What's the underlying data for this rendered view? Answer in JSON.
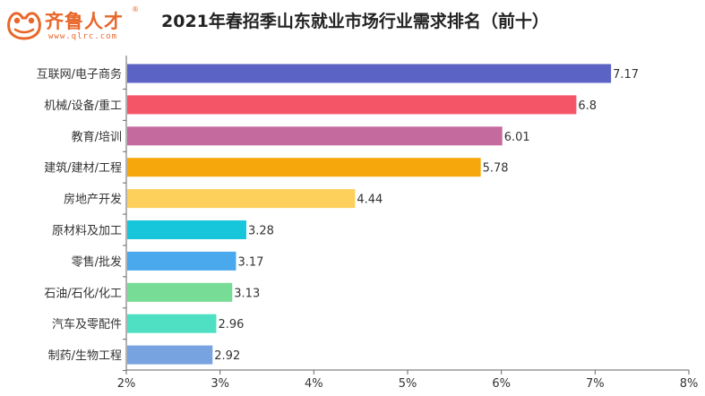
{
  "logo": {
    "text": "齐鲁人才",
    "reg": "®",
    "url": "www.qlrc.com",
    "colors": {
      "brand": "#e8672a"
    }
  },
  "chart_data": {
    "type": "bar",
    "orientation": "horizontal",
    "title": "2021年春招季山东就业市场行业需求排名（前十）",
    "categories": [
      "互联网/电子商务",
      "机械/设备/重工",
      "教育/培训",
      "建筑/建材/工程",
      "房地产开发",
      "原材料及加工",
      "零售/批发",
      "石油/石化/化工",
      "汽车及零配件",
      "制药/生物工程"
    ],
    "values": [
      7.17,
      6.8,
      6.01,
      5.78,
      4.44,
      3.28,
      3.17,
      3.13,
      2.96,
      2.92
    ],
    "value_labels": [
      "7.17",
      "6.8",
      "6.01",
      "5.78",
      "4.44",
      "3.28",
      "3.17",
      "3.13",
      "2.96",
      "2.92"
    ],
    "colors": [
      "#5b64c4",
      "#f45668",
      "#c56a9e",
      "#f6a70b",
      "#fdd05c",
      "#18c6dc",
      "#4aa9ec",
      "#76dc96",
      "#4fe0c4",
      "#77a3e0"
    ],
    "xlim": [
      2,
      8
    ],
    "xticks": [
      2,
      3,
      4,
      5,
      6,
      7,
      8
    ],
    "xtick_labels": [
      "2%",
      "3%",
      "4%",
      "5%",
      "6%",
      "7%",
      "8%"
    ],
    "xlabel": "",
    "ylabel": "",
    "grid": false,
    "legend": "none"
  }
}
